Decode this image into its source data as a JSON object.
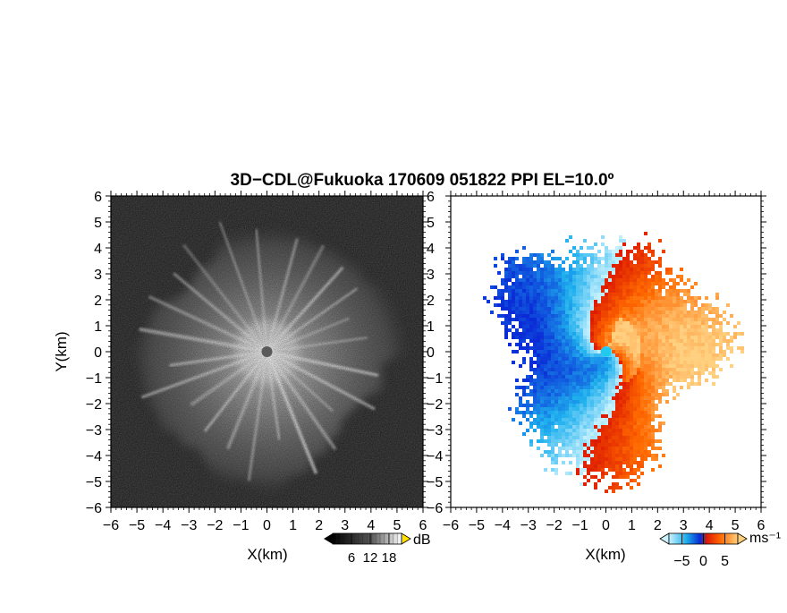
{
  "title": "3D−CDL@Fukuoka 170609 051822 PPI EL=10.0º",
  "chart_data": [
    {
      "type": "heatmap",
      "panel": "reflectivity",
      "xlabel": "X(km)",
      "ylabel": "Y(km)",
      "xlim": [
        -6,
        6
      ],
      "ylim": [
        -6,
        6
      ],
      "xticks": [
        "−6",
        "−5",
        "−4",
        "−3",
        "−2",
        "−1",
        "0",
        "1",
        "2",
        "3",
        "4",
        "5",
        "6"
      ],
      "yticks": [
        "−6",
        "−5",
        "−4",
        "−3",
        "−2",
        "−1",
        "0",
        "1",
        "2",
        "3",
        "4",
        "5",
        "6"
      ],
      "colormap": "grayscale",
      "background_level": "noise",
      "echo_radius_km": [
        4.0,
        5.6
      ],
      "colorbar": {
        "unit": "dB",
        "ticks": [
          "6",
          "12",
          "18"
        ],
        "values": [
          6,
          12,
          18
        ],
        "range": [
          0,
          22
        ]
      }
    },
    {
      "type": "heatmap",
      "panel": "doppler velocity",
      "xlabel": "X(km)",
      "xlim": [
        -6,
        6
      ],
      "ylim": [
        -6,
        6
      ],
      "xticks": [
        "−6",
        "−5",
        "−4",
        "−3",
        "−2",
        "−1",
        "0",
        "1",
        "2",
        "3",
        "4",
        "5",
        "6"
      ],
      "yticks": [
        "−6",
        "−5",
        "−4",
        "−3",
        "−2",
        "−1",
        "0",
        "1",
        "2",
        "3",
        "4",
        "5",
        "6"
      ],
      "colormap": "diverging blue-white-orange",
      "pattern": "negative (toward radar) on west side, positive (away) on east side, spiral near center",
      "colorbar": {
        "unit": "ms⁻¹",
        "ticks": [
          "−5",
          "0",
          "5"
        ],
        "values": [
          -5,
          0,
          5
        ],
        "range": [
          -8,
          8
        ]
      }
    }
  ],
  "colors": {
    "neg_light": "#c9f2ff",
    "neg_mid": "#1fb0ee",
    "neg_dark": "#0a2bd6",
    "pos_dark": "#dd1a00",
    "pos_mid": "#ff6a00",
    "pos_light": "#ffd080"
  }
}
